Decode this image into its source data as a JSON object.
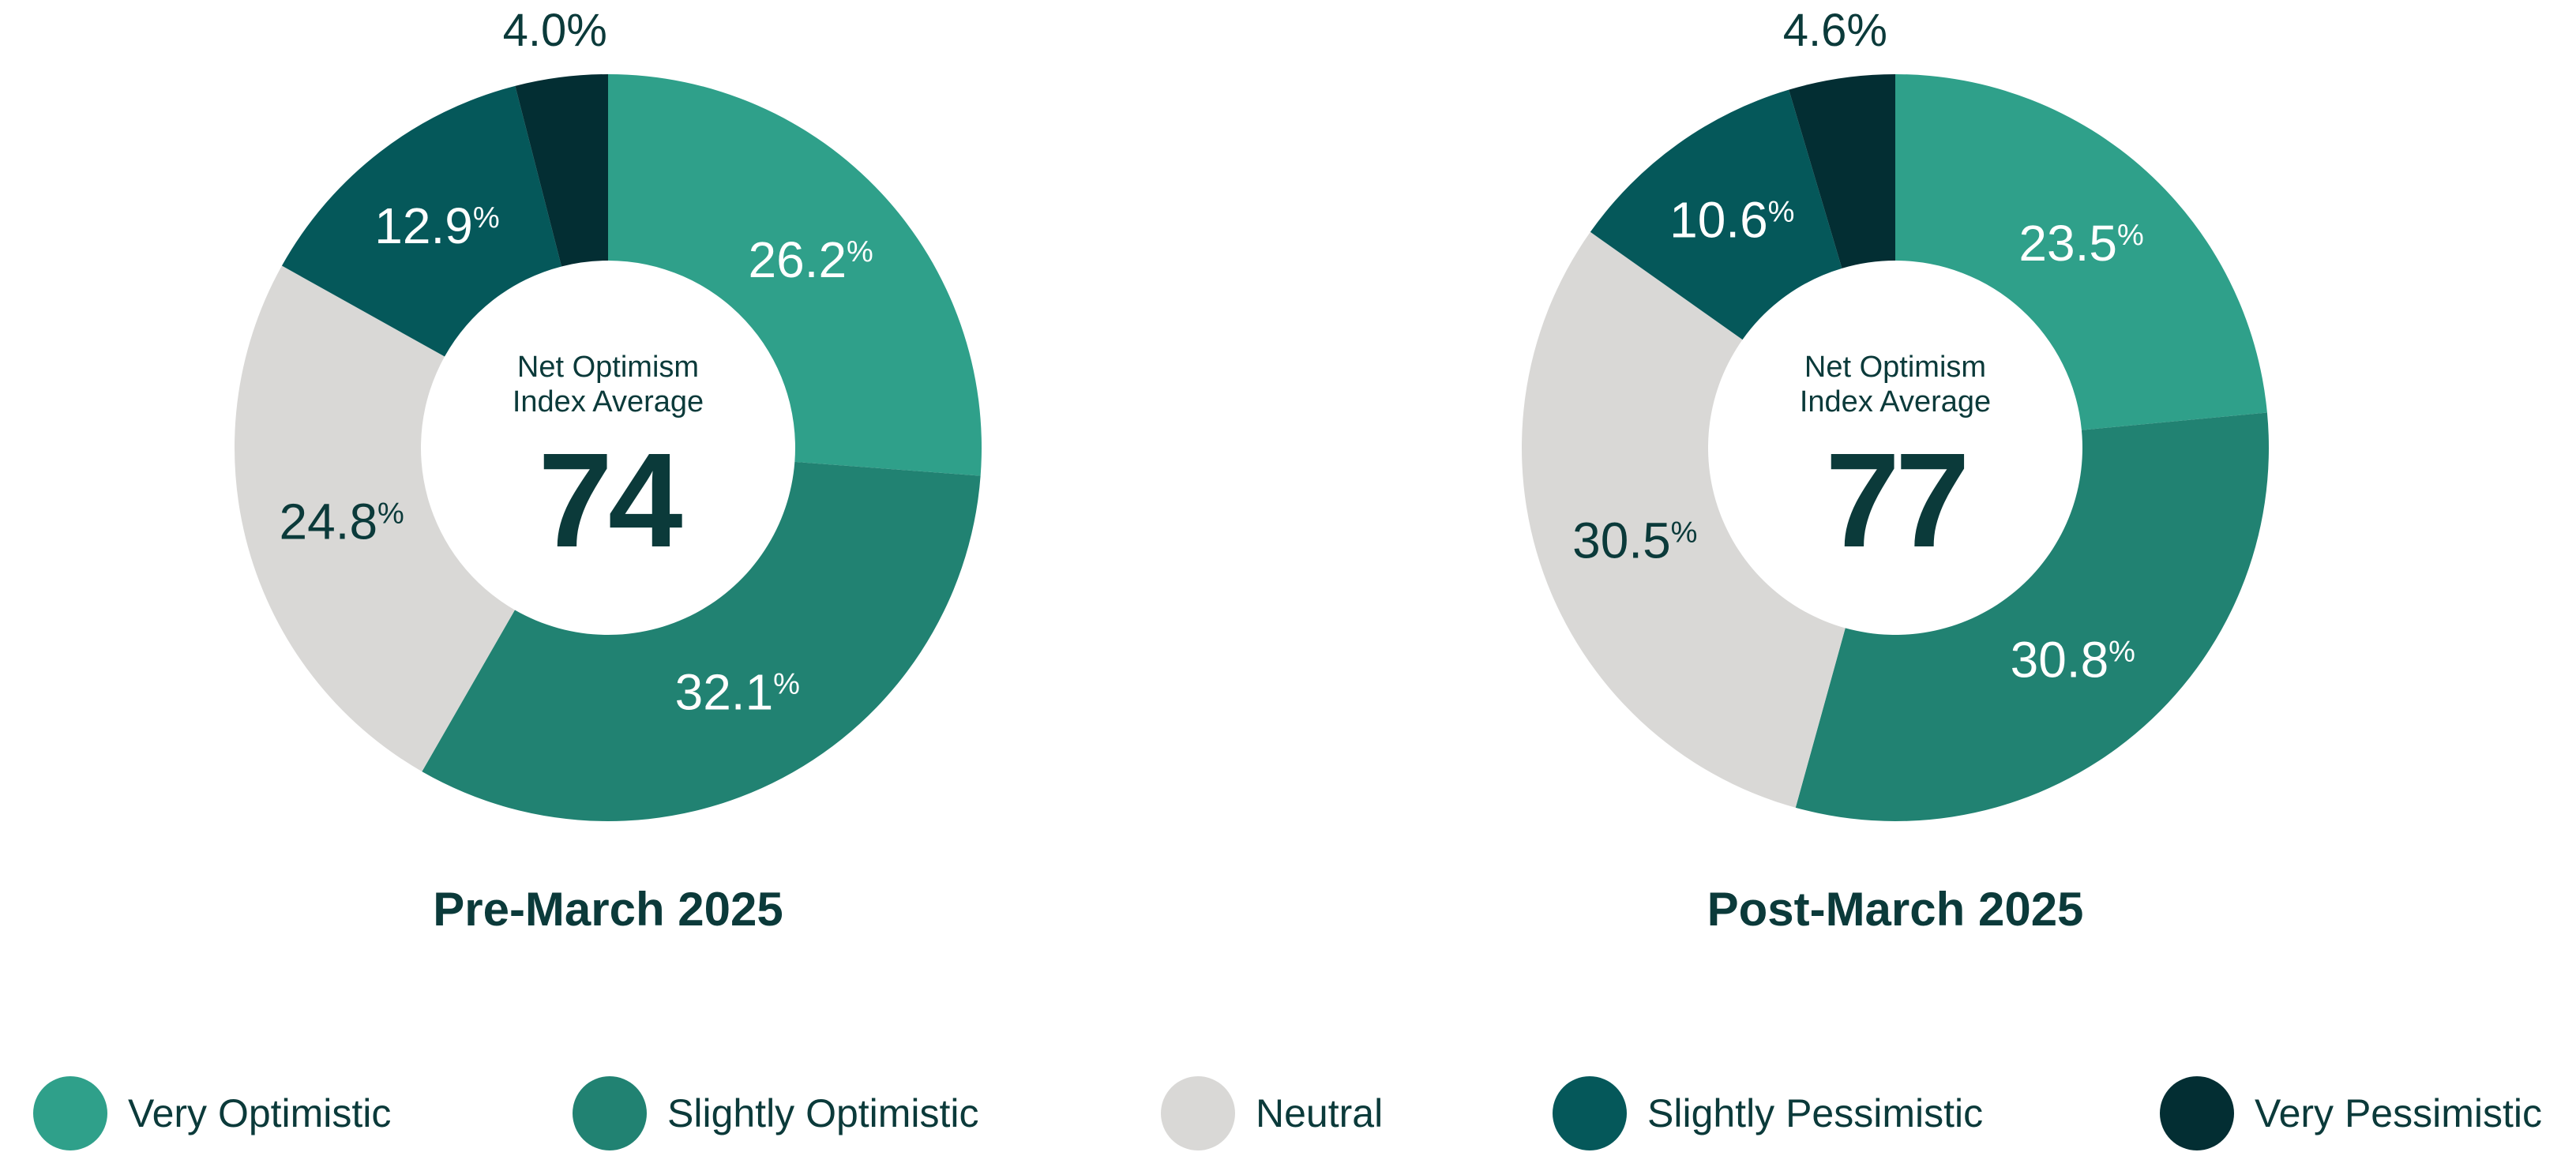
{
  "chart_data": [
    {
      "type": "donut",
      "title": "Pre-March 2025",
      "center_label": "Net Optimism Index Average",
      "center_label_lines": [
        "Net Optimism",
        "Index Average"
      ],
      "center_value": "74",
      "categories": [
        "Very Optimistic",
        "Slightly Optimistic",
        "Neutral",
        "Slightly Pessimistic",
        "Very Pessimistic"
      ],
      "values": [
        26.2,
        32.1,
        24.8,
        12.9,
        4.0
      ],
      "labels": [
        "26.2",
        "32.1",
        "24.8",
        "12.9",
        "4.0%"
      ],
      "unit": "%"
    },
    {
      "type": "donut",
      "title": "Post-March 2025",
      "center_label": "Net Optimism Index Average",
      "center_label_lines": [
        "Net Optimism",
        "Index Average"
      ],
      "center_value": "77",
      "categories": [
        "Very Optimistic",
        "Slightly Optimistic",
        "Neutral",
        "Slightly Pessimistic",
        "Very Pessimistic"
      ],
      "values": [
        23.5,
        30.8,
        30.5,
        10.6,
        4.6
      ],
      "labels": [
        "23.5",
        "30.8",
        "30.5",
        "10.6",
        "4.6%"
      ],
      "unit": "%"
    }
  ],
  "legend": [
    {
      "label": "Very Optimistic",
      "color": "#2fa08a"
    },
    {
      "label": "Slightly Optimistic",
      "color": "#218272"
    },
    {
      "label": "Neutral",
      "color": "#d9d8d6"
    },
    {
      "label": "Slightly Pessimistic",
      "color": "#05585a"
    },
    {
      "label": "Very Pessimistic",
      "color": "#032e33"
    }
  ],
  "label_colors": [
    "#ffffff",
    "#ffffff",
    "#0b3a3a",
    "#ffffff",
    "#0b3a3a"
  ],
  "legend_placement": "bottom"
}
